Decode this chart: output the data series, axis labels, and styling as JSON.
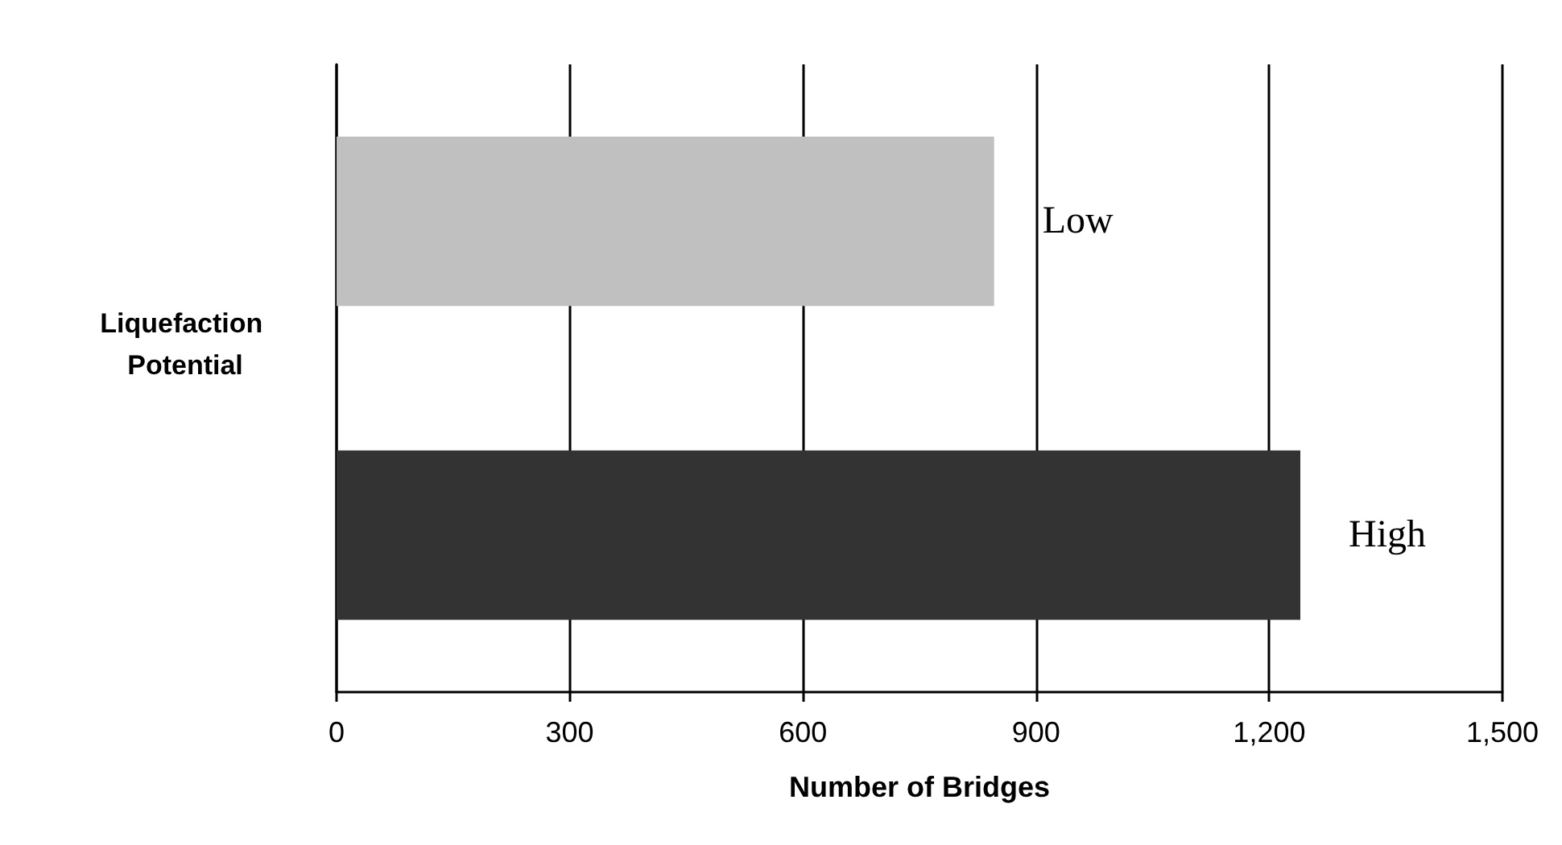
{
  "chart_data": {
    "type": "bar",
    "orientation": "horizontal",
    "categories": [
      "Low",
      "High"
    ],
    "values": [
      846,
      1240
    ],
    "colors": [
      "#c0c0c0",
      "#333333"
    ],
    "xlim": [
      0,
      1500
    ],
    "xticks": [
      0,
      300,
      600,
      900,
      {
        "value": 1200,
        "label": "1,200"
      },
      {
        "value": 1500,
        "label": "1,500"
      }
    ],
    "xlabel": "Number of Bridges",
    "ylabel": "Liquefaction Potential",
    "grid": "x"
  }
}
